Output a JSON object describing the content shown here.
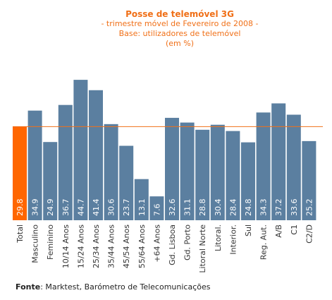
{
  "chart_data": {
    "type": "bar",
    "title": "Posse de telemóvel 3G",
    "subtitle_lines": [
      "- trimestre móvel de Fevereiro de 2008 -",
      "Base: utilizadores de telemóvel",
      "(em %)"
    ],
    "categories": [
      "Total",
      "Masculino",
      "Feminino",
      "10/14 Anos",
      "15/24 Anos",
      "25/34 Anos",
      "35/44 Anos",
      "45/54 Anos",
      "55/64 Anos",
      "+64 Anos",
      "Gd. Lisboa",
      "Gd. Porto",
      "Litoral Norte",
      "Litoral.",
      "Interior.",
      "Sul",
      "Reg. Aut.",
      "A/B",
      "C1",
      "C2/D"
    ],
    "value_labels": [
      "29.8",
      "34.9",
      "24.9",
      "36.7",
      "44.7",
      "41.4",
      "30.6",
      "23.7",
      "13.1",
      "7.6",
      "32.6",
      "31.1",
      "28.8",
      "30.4",
      "28.4",
      "24.8",
      "34.3",
      "37.2",
      "33.6",
      "25.2"
    ],
    "values": [
      29.8,
      34.9,
      24.9,
      36.7,
      44.7,
      41.4,
      30.6,
      23.7,
      13.1,
      7.6,
      32.6,
      31.1,
      28.8,
      30.4,
      28.4,
      24.8,
      34.3,
      37.2,
      33.6,
      25.2
    ],
    "reference_line": 29.8,
    "ylim": [
      0,
      50
    ],
    "colors": {
      "total_bar": "#ff6600",
      "bar": "#5b7fa0",
      "reference_line": "#f07018",
      "title": "#f07018"
    }
  },
  "source": {
    "label": "Fonte",
    "text": ": Marktest, Barómetro de Telecomunicações"
  }
}
